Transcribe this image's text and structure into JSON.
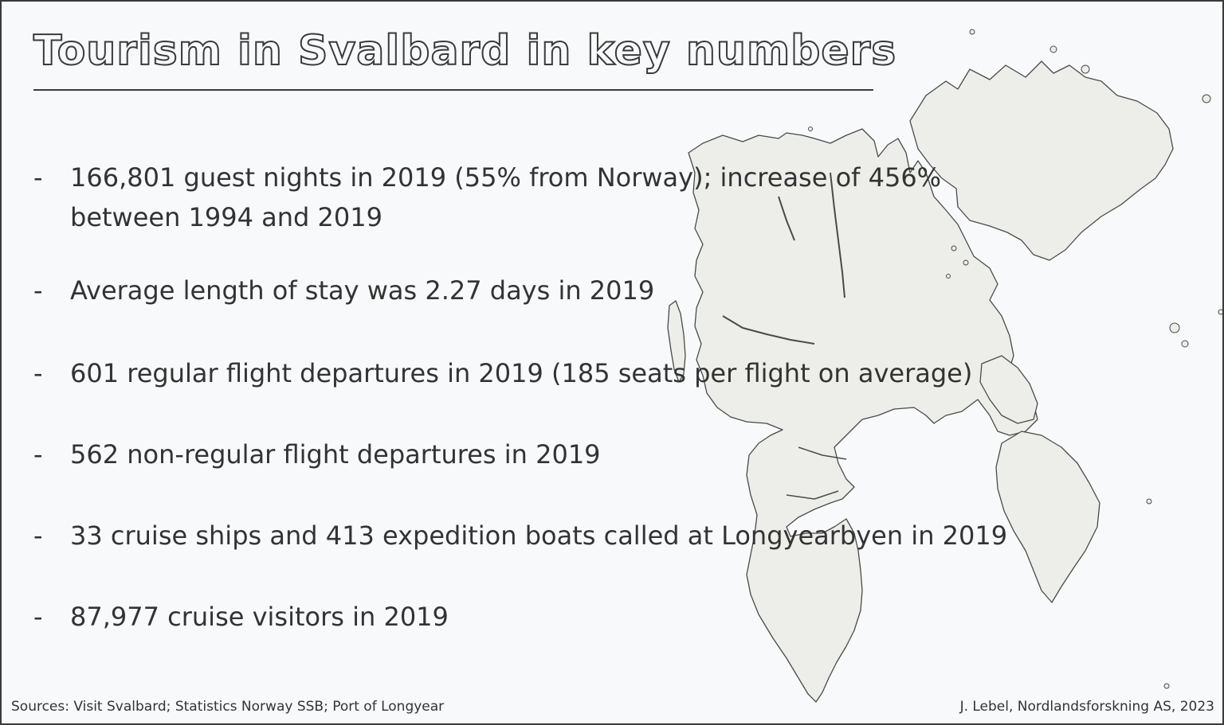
{
  "title": "Tourism in Svalbard in key numbers",
  "bullet_marker": "-",
  "facts": [
    {
      "text": "166,801 guest nights in 2019 (55% from Norway); increase of 456% between 1994 and 2019"
    },
    {
      "text": "Average length of stay was 2.27 days in 2019"
    },
    {
      "text": "601 regular flight departures in 2019 (185 seats per flight on average)"
    },
    {
      "text": "562 non-regular flight departures in 2019"
    },
    {
      "text": "33 cruise ships and 413 expedition boats called at Longyearbyen in 2019"
    },
    {
      "text": "87,977 cruise visitors in 2019"
    }
  ],
  "footer": {
    "sources": "Sources: Visit Svalbard; Statistics Norway SSB; Port of Longyear",
    "credit": "J. Lebel, Nordlandsforskning AS, 2023"
  },
  "colors": {
    "background": "#f8f9fb",
    "land": "#ededea",
    "outline": "#4a4a4a",
    "text": "#333333"
  }
}
